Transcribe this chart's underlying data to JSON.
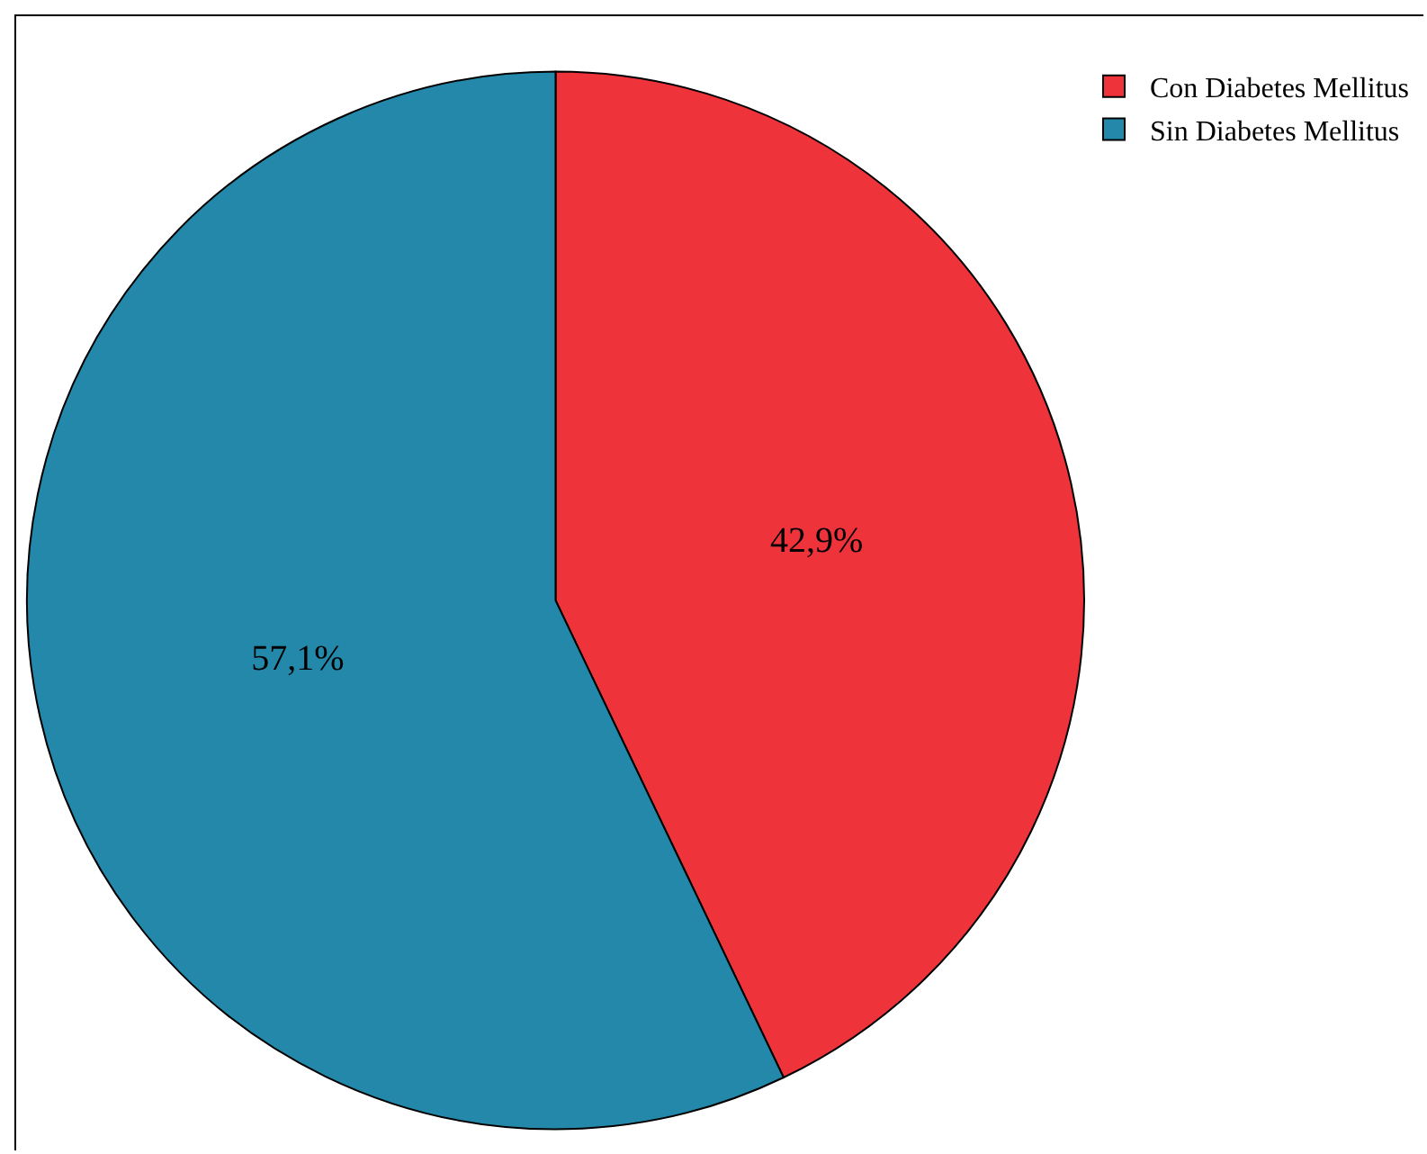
{
  "chart_data": {
    "type": "pie",
    "categories": [
      "Con Diabetes Mellitus",
      "Sin Diabetes Mellitus"
    ],
    "values": [
      42.9,
      57.1
    ],
    "colors": [
      "#ef333a",
      "#2388a9"
    ],
    "value_labels": [
      "42,9%",
      "57,1%"
    ],
    "legend": "top right"
  }
}
